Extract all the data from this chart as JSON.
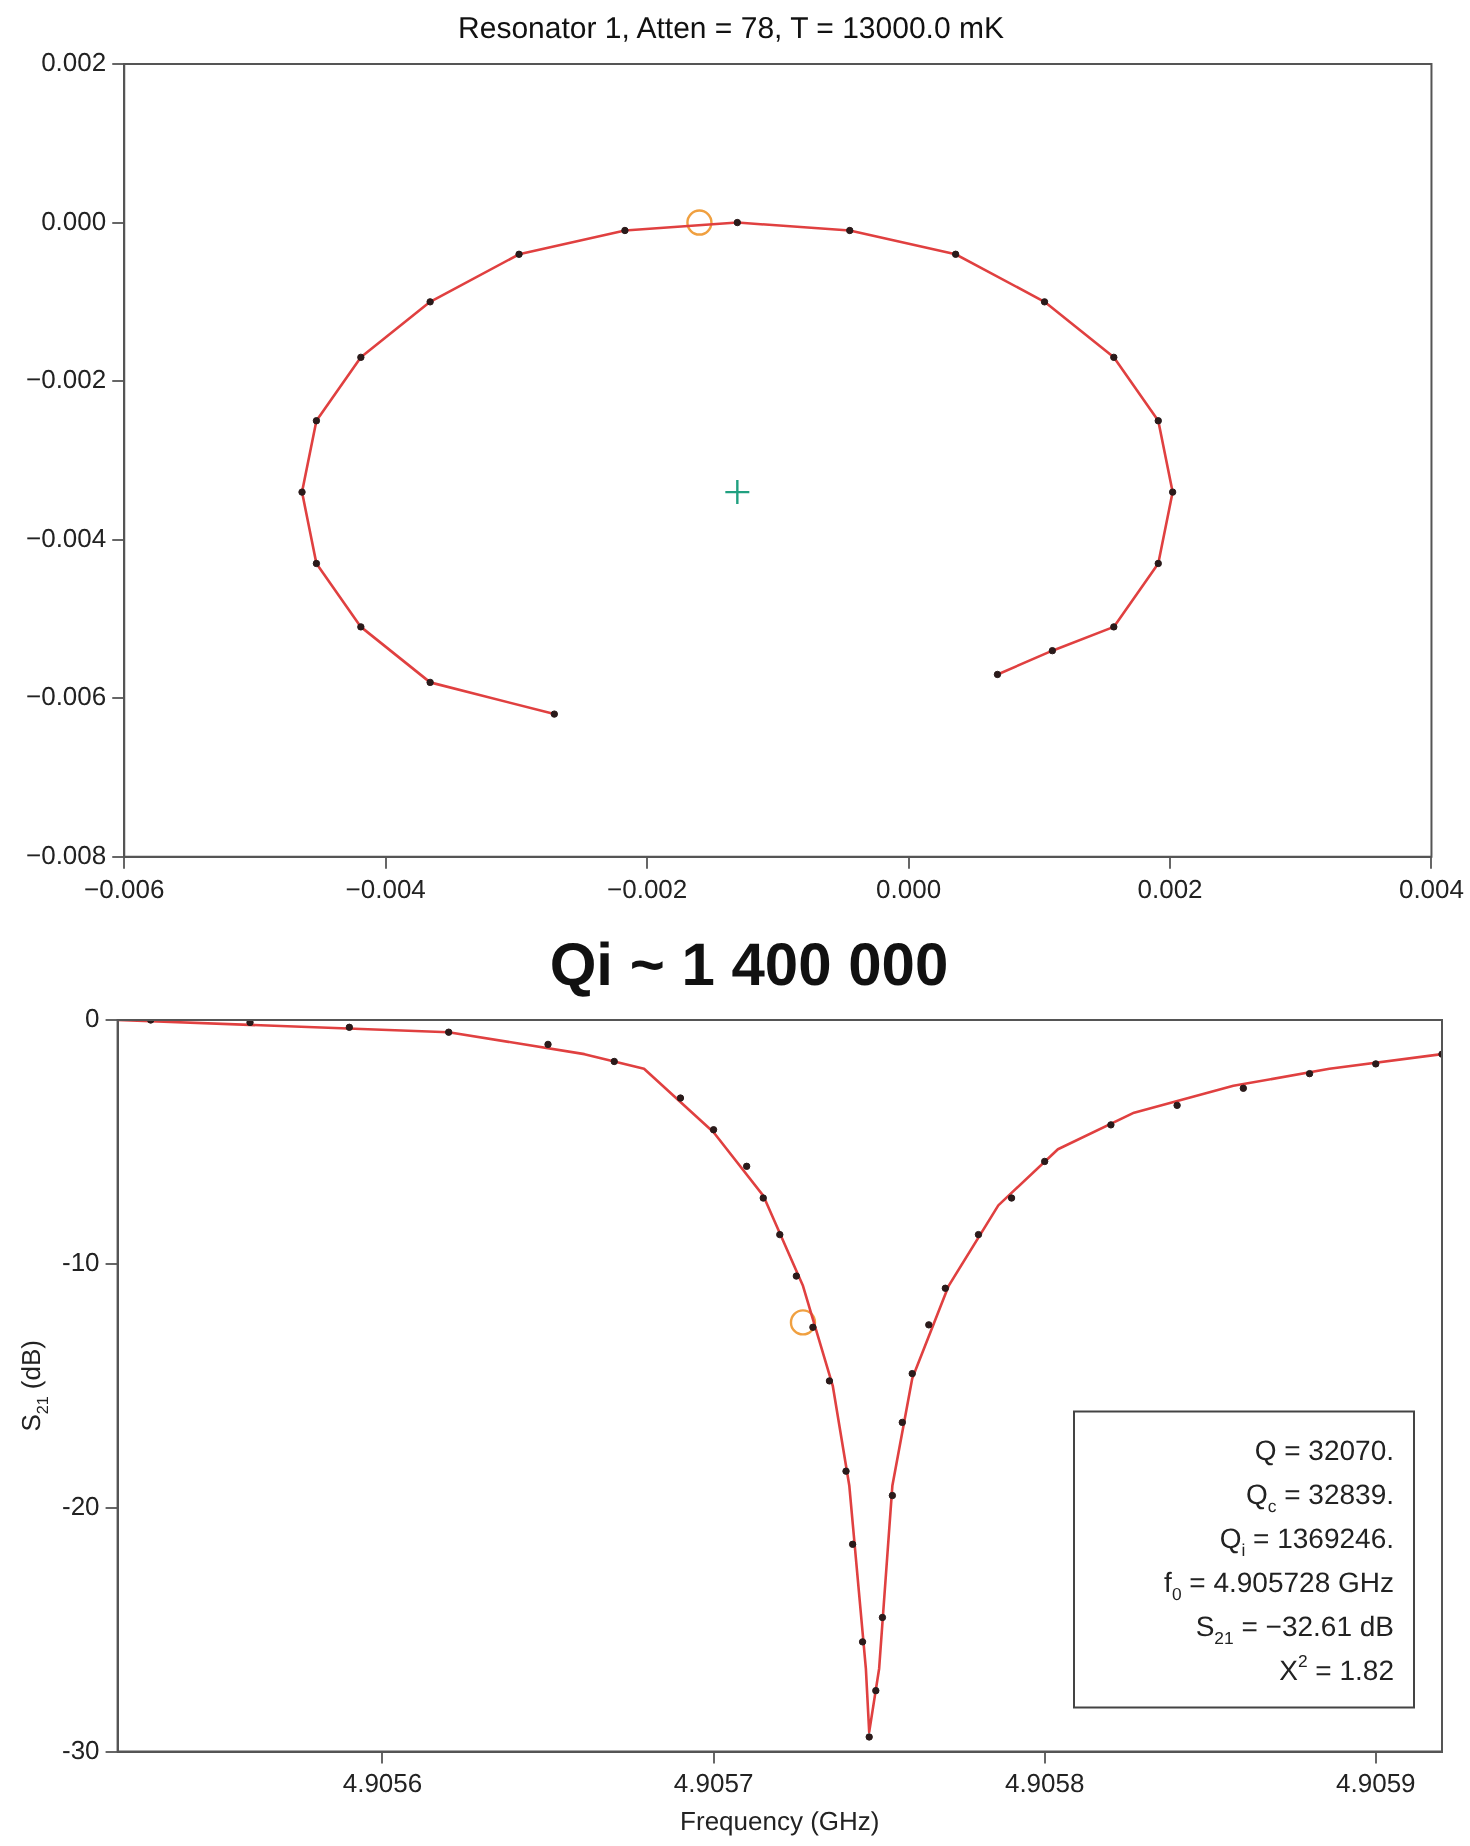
{
  "chart_data": [
    {
      "type": "scatter",
      "title": "Resonator 1, Atten = 78, T = 13000.0 mK",
      "xlim": [
        -0.006,
        0.004
      ],
      "ylim": [
        -0.008,
        0.002
      ],
      "xticks": [
        {
          "value": -0.006,
          "label": "−0.006"
        },
        {
          "value": -0.004,
          "label": "−0.004"
        },
        {
          "value": -0.002,
          "label": "−0.002"
        },
        {
          "value": 0,
          "label": "0.000"
        },
        {
          "value": 0.002,
          "label": "0.002"
        },
        {
          "value": 0.004,
          "label": "0.004"
        }
      ],
      "yticks": [
        {
          "value": -0.008,
          "label": "−0.008"
        },
        {
          "value": -0.006,
          "label": "−0.006"
        },
        {
          "value": -0.004,
          "label": "−0.004"
        },
        {
          "value": -0.002,
          "label": "−0.002"
        },
        {
          "value": 0,
          "label": "0.000"
        },
        {
          "value": 0.002,
          "label": "0.002"
        }
      ],
      "grid": false,
      "legend": false,
      "series": [
        {
          "type": "scatter",
          "color": "#2a1a1a",
          "marker": "circle",
          "x": [
            0.00068,
            0.0011,
            0.00157,
            0.00191,
            0.00202,
            0.00191,
            0.00157,
            0.00104,
            0.00036,
            -0.00045,
            -0.00131,
            -0.00217,
            -0.00298,
            -0.00366,
            -0.00419,
            -0.00453,
            -0.00464,
            -0.00453,
            -0.00419,
            -0.00366,
            -0.00271
          ],
          "values": [
            -0.0057,
            -0.0054,
            -0.0051,
            -0.0043,
            -0.0034,
            -0.0025,
            -0.0017,
            -0.001,
            -0.0004,
            -0.0001,
            0,
            -0.0001,
            -0.0004,
            -0.001,
            -0.0017,
            -0.0025,
            -0.0034,
            -0.0043,
            -0.0051,
            -0.0058,
            -0.0062
          ]
        },
        {
          "type": "line",
          "color": "#e04040",
          "marker": "none",
          "x": [
            0.00068,
            0.0011,
            0.00157,
            0.00191,
            0.00202,
            0.00191,
            0.00157,
            0.00104,
            0.00036,
            -0.00045,
            -0.00131,
            -0.00217,
            -0.00298,
            -0.00366,
            -0.00419,
            -0.00453,
            -0.00464,
            -0.00453,
            -0.00419,
            -0.00366,
            -0.00271
          ],
          "values": [
            -0.0057,
            -0.0054,
            -0.0051,
            -0.0043,
            -0.0034,
            -0.0025,
            -0.0017,
            -0.001,
            -0.0004,
            -0.0001,
            0,
            -0.0001,
            -0.0004,
            -0.001,
            -0.0017,
            -0.0025,
            -0.0034,
            -0.0043,
            -0.0051,
            -0.0058,
            -0.0062
          ]
        },
        {
          "type": "scatter",
          "color": "#f0a040",
          "marker": "circle",
          "x": [
            -0.0016
          ],
          "values": [
            0
          ]
        },
        {
          "type": "scatter",
          "color": "#20a080",
          "marker": "cross",
          "x": [
            -0.00131
          ],
          "values": [
            -0.0034
          ]
        }
      ]
    },
    {
      "type": "scatter",
      "title": "Qi ~ 1 400 000",
      "xlabel": "Frequency (GHz)",
      "ylabel": "S$_{21}$ (dB)",
      "xlim": [
        4.90552,
        4.90592
      ],
      "ylim": [
        -30,
        0
      ],
      "xticks": [
        4.9056,
        4.9057,
        4.9058,
        4.9059
      ],
      "yticks": [
        -30,
        -20,
        -10,
        0
      ],
      "grid": false,
      "legend": false,
      "annotations": [
        "Q = 32070.",
        "Q$_{c}$ = 32839.",
        "Q$_{i}$ = 1369246.",
        "f$_{0}$ = 4.905728 GHz",
        "S$_{21}$ = −32.61 dB",
        "X$^{2}$ = 1.82"
      ],
      "series": [
        {
          "type": "scatter",
          "color": "#2a1a1a",
          "marker": "circle",
          "x": [
            4.90553,
            4.90556,
            4.90559,
            4.90562,
            4.90565,
            4.90567,
            4.90569,
            4.9057,
            4.90571,
            4.905715,
            4.90572,
            4.905725,
            4.90573,
            4.905735,
            4.90574,
            4.905742,
            4.905745,
            4.905747,
            4.905749,
            4.905751,
            4.905754,
            4.905757,
            4.90576,
            4.905765,
            4.90577,
            4.90578,
            4.90579,
            4.9058,
            4.90582,
            4.90584,
            4.90586,
            4.90588,
            4.9059,
            4.90592
          ],
          "values": [
            0,
            -0.1,
            -0.3,
            -0.5,
            -1.0,
            -1.7,
            -3.2,
            -4.5,
            -6.0,
            -7.3,
            -8.8,
            -10.5,
            -12.6,
            -14.8,
            -18.5,
            -21.5,
            -25.5,
            -29.4,
            -27.5,
            -24.5,
            -19.5,
            -16.5,
            -14.5,
            -12.5,
            -11.0,
            -8.8,
            -7.3,
            -5.8,
            -4.3,
            -3.5,
            -2.8,
            -2.2,
            -1.8,
            -1.4
          ]
        },
        {
          "type": "line",
          "color": "#e04040",
          "marker": "none",
          "x": [
            4.90552,
            4.90562,
            4.905661,
            4.905679,
            4.9057,
            4.905715,
            4.905727,
            4.905736,
            4.905741,
            4.905746,
            4.905747,
            4.90575,
            4.905754,
            4.90576,
            4.905771,
            4.905786,
            4.905804,
            4.905827,
            4.905857,
            4.905886,
            4.90592
          ],
          "values": [
            0,
            -0.5,
            -1.4,
            -2.0,
            -4.6,
            -7.2,
            -10.9,
            -15.0,
            -19.1,
            -26.6,
            -29.2,
            -26.6,
            -19.1,
            -14.7,
            -10.9,
            -7.6,
            -5.3,
            -3.8,
            -2.7,
            -2.0,
            -1.4
          ]
        },
        {
          "type": "scatter",
          "color": "#f0a040",
          "marker": "circle",
          "x": [
            4.905727
          ],
          "values": [
            -12.4
          ]
        }
      ]
    }
  ]
}
